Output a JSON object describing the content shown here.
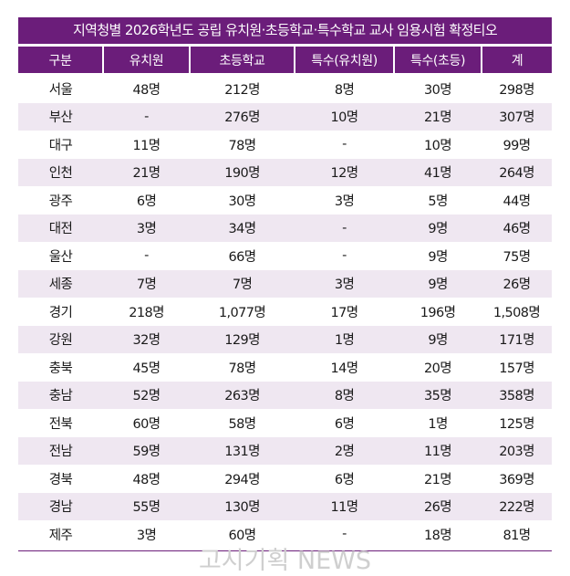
{
  "title": "지역청별 2026학년도 공립 유치원·초등학교·특수학교 교사 임용시험 확정티오",
  "columns": [
    "구분",
    "유치원",
    "초등학교",
    "특수(유치원)",
    "특수(초등)",
    "계"
  ],
  "rows": [
    [
      "서울",
      "48명",
      "212명",
      "8명",
      "30명",
      "298명"
    ],
    [
      "부산",
      "-",
      "276명",
      "10명",
      "21명",
      "307명"
    ],
    [
      "대구",
      "11명",
      "78명",
      "-",
      "10명",
      "99명"
    ],
    [
      "인천",
      "21명",
      "190명",
      "12명",
      "41명",
      "264명"
    ],
    [
      "광주",
      "6명",
      "30명",
      "3명",
      "5명",
      "44명"
    ],
    [
      "대전",
      "3명",
      "34명",
      "-",
      "9명",
      "46명"
    ],
    [
      "울산",
      "-",
      "66명",
      "-",
      "9명",
      "75명"
    ],
    [
      "세종",
      "7명",
      "7명",
      "3명",
      "9명",
      "26명"
    ],
    [
      "경기",
      "218명",
      "1,077명",
      "17명",
      "196명",
      "1,508명"
    ],
    [
      "강원",
      "32명",
      "129명",
      "1명",
      "9명",
      "171명"
    ],
    [
      "충북",
      "45명",
      "78명",
      "14명",
      "20명",
      "157명"
    ],
    [
      "충남",
      "52명",
      "263명",
      "8명",
      "35명",
      "358명"
    ],
    [
      "전북",
      "60명",
      "58명",
      "6명",
      "1명",
      "125명"
    ],
    [
      "전남",
      "59명",
      "131명",
      "2명",
      "11명",
      "203명"
    ],
    [
      "경북",
      "48명",
      "294명",
      "6명",
      "21명",
      "369명"
    ],
    [
      "경남",
      "55명",
      "130명",
      "11명",
      "26명",
      "222명"
    ],
    [
      "제주",
      "3명",
      "60명",
      "-",
      "18명",
      "81명"
    ]
  ],
  "watermark": "고시기획 NEWS",
  "colors": {
    "header_bg": "#6b1d7a",
    "stripe_bg": "#efe7f1",
    "watermark": "#cfcfcf"
  }
}
